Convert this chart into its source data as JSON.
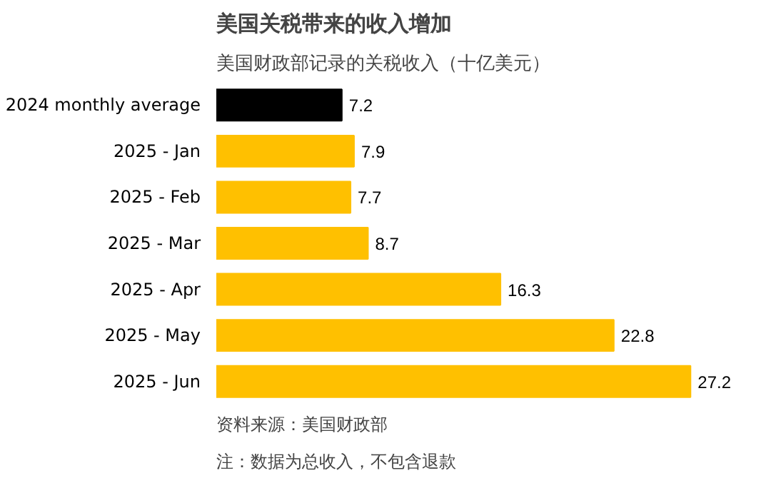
{
  "chart_data": {
    "type": "bar",
    "orientation": "horizontal",
    "title": "美国关税带来的收入增加",
    "subtitle": "美国财政部记录的关税收入（十亿美元）",
    "categories": [
      "2024 monthly average",
      "2025 - Jan",
      "2025 - Feb",
      "2025 - Mar",
      "2025 - Apr",
      "2025 - May",
      "2025 - Jun"
    ],
    "values": [
      7.2,
      7.9,
      7.7,
      8.7,
      16.3,
      22.8,
      27.2
    ],
    "colors": [
      "#000000",
      "#ffc000",
      "#ffc000",
      "#ffc000",
      "#ffc000",
      "#ffc000",
      "#ffc000"
    ],
    "data_labels": true,
    "grid": false,
    "annotations": [
      "资料来源：美国财政部",
      "注：数据为总收入，不包含退款"
    ]
  }
}
